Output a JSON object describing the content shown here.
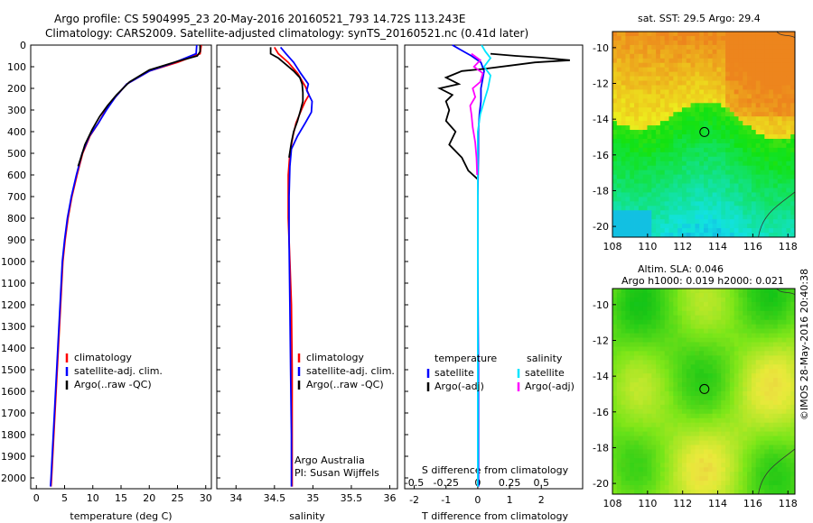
{
  "header": {
    "line1": "Argo profile: CS 5904995_23 20-May-2016 20160521_793 14.72S 113.243E",
    "line2": "Climatology: CARS2009. Satellite-adjusted climatology: synTS_20160521.nc (0.41d later)"
  },
  "colors": {
    "climatology": "#ff0000",
    "satellite": "#0000ff",
    "argo": "#000000",
    "sal_satellite": "#00e5ff",
    "sal_argo": "#ff00ff"
  },
  "chart_data": [
    {
      "type": "line",
      "xlabel": "temperature (deg C)",
      "ylim": [
        0,
        2050
      ],
      "xlim": [
        -1,
        31
      ],
      "xticks": [
        "0",
        "5",
        "10",
        "15",
        "20",
        "25",
        "30"
      ],
      "yticks": [
        "0",
        "100",
        "200",
        "300",
        "400",
        "500",
        "600",
        "700",
        "800",
        "900",
        "1000",
        "1100",
        "1200",
        "1300",
        "1400",
        "1500",
        "1600",
        "1700",
        "1800",
        "1900",
        "2000"
      ],
      "legend": [
        "climatology",
        "satellite-adj. clim.",
        "Argo(..raw -QC)"
      ],
      "series": [
        {
          "name": "climatology",
          "points": [
            [
              29.2,
              0
            ],
            [
              29.0,
              40
            ],
            [
              25,
              80
            ],
            [
              20,
              120
            ],
            [
              16,
              180
            ],
            [
              14,
              240
            ],
            [
              12.3,
              300
            ],
            [
              11,
              360
            ],
            [
              9.5,
              420
            ],
            [
              8.2,
              500
            ],
            [
              7.2,
              600
            ],
            [
              6.3,
              700
            ],
            [
              5.6,
              800
            ],
            [
              5.1,
              900
            ],
            [
              4.7,
              1000
            ],
            [
              4.3,
              1200
            ],
            [
              3.9,
              1400
            ],
            [
              3.5,
              1600
            ],
            [
              3.1,
              1800
            ],
            [
              2.7,
              2000
            ],
            [
              2.6,
              2040
            ]
          ]
        },
        {
          "name": "satellite-adj. clim.",
          "points": [
            [
              28.4,
              0
            ],
            [
              28.3,
              40
            ],
            [
              24.5,
              80
            ],
            [
              20,
              120
            ],
            [
              16,
              180
            ],
            [
              14,
              240
            ],
            [
              12.4,
              300
            ],
            [
              11,
              360
            ],
            [
              9.4,
              420
            ],
            [
              8.1,
              500
            ],
            [
              7.1,
              600
            ],
            [
              6.2,
              700
            ],
            [
              5.5,
              800
            ],
            [
              5.0,
              900
            ],
            [
              4.6,
              1000
            ],
            [
              4.2,
              1200
            ],
            [
              3.8,
              1400
            ],
            [
              3.4,
              1600
            ],
            [
              3.0,
              1800
            ],
            [
              2.6,
              2000
            ],
            [
              2.5,
              2040
            ]
          ]
        },
        {
          "name": "Argo(..raw -QC)",
          "points": [
            [
              29.0,
              0
            ],
            [
              29.0,
              30
            ],
            [
              28.5,
              50
            ],
            [
              25,
              75
            ],
            [
              20,
              115
            ],
            [
              16.5,
              170
            ],
            [
              14.2,
              230
            ],
            [
              12.6,
              280
            ],
            [
              11.2,
              330
            ],
            [
              9.9,
              390
            ],
            [
              8.6,
              460
            ],
            [
              7.9,
              520
            ],
            [
              7.4,
              560
            ]
          ]
        }
      ]
    },
    {
      "type": "line",
      "xlabel": "salinity",
      "ylim": [
        0,
        2050
      ],
      "xlim": [
        33.75,
        36.1
      ],
      "xticks": [
        "34",
        "34.5",
        "35",
        "35.5",
        "36"
      ],
      "legend": [
        "climatology",
        "satellite-adj. clim.",
        "Argo(..raw -QC)"
      ],
      "annotation": [
        "Argo Australia",
        "PI: Susan Wijffels"
      ],
      "series": [
        {
          "name": "climatology",
          "points": [
            [
              34.5,
              10
            ],
            [
              34.55,
              40
            ],
            [
              34.68,
              80
            ],
            [
              34.8,
              130
            ],
            [
              34.9,
              190
            ],
            [
              34.95,
              230
            ],
            [
              34.9,
              260
            ],
            [
              34.85,
              300
            ],
            [
              34.78,
              360
            ],
            [
              34.74,
              420
            ],
            [
              34.7,
              500
            ],
            [
              34.68,
              600
            ],
            [
              34.68,
              800
            ],
            [
              34.7,
              1000
            ],
            [
              34.72,
              1200
            ],
            [
              34.73,
              1500
            ],
            [
              34.73,
              1800
            ],
            [
              34.73,
              2040
            ]
          ]
        },
        {
          "name": "satellite-adj. clim.",
          "points": [
            [
              34.58,
              10
            ],
            [
              34.65,
              40
            ],
            [
              34.75,
              80
            ],
            [
              34.84,
              130
            ],
            [
              34.94,
              180
            ],
            [
              34.92,
              210
            ],
            [
              34.99,
              260
            ],
            [
              34.98,
              310
            ],
            [
              34.9,
              360
            ],
            [
              34.8,
              420
            ],
            [
              34.72,
              480
            ],
            [
              34.7,
              560
            ],
            [
              34.69,
              700
            ],
            [
              34.69,
              900
            ],
            [
              34.7,
              1200
            ],
            [
              34.71,
              1500
            ],
            [
              34.72,
              1800
            ],
            [
              34.72,
              2040
            ]
          ]
        },
        {
          "name": "Argo(..raw -QC)",
          "points": [
            [
              34.45,
              10
            ],
            [
              34.45,
              40
            ],
            [
              34.55,
              60
            ],
            [
              34.65,
              90
            ],
            [
              34.75,
              120
            ],
            [
              34.83,
              150
            ],
            [
              34.86,
              180
            ],
            [
              34.87,
              220
            ],
            [
              34.87,
              260
            ],
            [
              34.84,
              300
            ],
            [
              34.8,
              350
            ],
            [
              34.75,
              400
            ],
            [
              34.72,
              450
            ],
            [
              34.69,
              520
            ]
          ]
        }
      ]
    },
    {
      "type": "line",
      "xlabel": "T difference from climatology",
      "xlabel2": "S difference from climatology",
      "ylim": [
        0,
        2050
      ],
      "xlim": [
        -2.3,
        3.3
      ],
      "xticks": [
        "-2",
        "-1",
        "0",
        "1",
        "2"
      ],
      "xticks2": [
        "-0.5",
        "-0.25",
        "0",
        "0.25",
        "0.5"
      ],
      "legend_t_title": "temperature",
      "legend_s_title": "salinity",
      "legend_t": [
        "satellite",
        "Argo(-adj)"
      ],
      "legend_s": [
        "satellite",
        "Argo(-adj)"
      ],
      "series": [
        {
          "name": "T satellite",
          "points": [
            [
              -0.8,
              0
            ],
            [
              -0.5,
              25
            ],
            [
              -0.2,
              50
            ],
            [
              0.1,
              80
            ],
            [
              0.2,
              120
            ],
            [
              0.15,
              160
            ],
            [
              0.1,
              200
            ],
            [
              0.1,
              260
            ],
            [
              0.05,
              320
            ],
            [
              0.02,
              400
            ],
            [
              0.02,
              500
            ],
            [
              0.0,
              700
            ],
            [
              0.0,
              1000
            ],
            [
              0.02,
              1500
            ],
            [
              0.02,
              2000
            ],
            [
              0.02,
              2040
            ]
          ]
        },
        {
          "name": "T Argo(-adj)",
          "points": [
            [
              0.4,
              40
            ],
            [
              1.2,
              50
            ],
            [
              2.0,
              58
            ],
            [
              2.9,
              70
            ],
            [
              1.8,
              80
            ],
            [
              1.0,
              95
            ],
            [
              0.2,
              110
            ],
            [
              -0.5,
              120
            ],
            [
              -1.0,
              150
            ],
            [
              -0.6,
              180
            ],
            [
              -1.2,
              200
            ],
            [
              -0.8,
              230
            ],
            [
              -1.0,
              260
            ],
            [
              -0.9,
              300
            ],
            [
              -1.0,
              350
            ],
            [
              -0.7,
              400
            ],
            [
              -0.9,
              460
            ],
            [
              -0.5,
              520
            ],
            [
              -0.3,
              580
            ],
            [
              0.0,
              620
            ]
          ]
        },
        {
          "name": "S satellite",
          "points": [
            [
              0.03,
              0
            ],
            [
              0.06,
              30
            ],
            [
              0.1,
              60
            ],
            [
              0.05,
              100
            ],
            [
              0.1,
              140
            ],
            [
              0.08,
              200
            ],
            [
              0.05,
              260
            ],
            [
              0.02,
              320
            ],
            [
              0.0,
              400
            ],
            [
              0.0,
              600
            ],
            [
              0.0,
              900
            ],
            [
              0.0,
              1300
            ],
            [
              0.0,
              1700
            ],
            [
              0.0,
              2040
            ]
          ]
        },
        {
          "name": "S Argo(-adj)",
          "points": [
            [
              -0.05,
              40
            ],
            [
              0.02,
              70
            ],
            [
              -0.03,
              100
            ],
            [
              0.04,
              130
            ],
            [
              0.02,
              170
            ],
            [
              -0.04,
              200
            ],
            [
              -0.02,
              240
            ],
            [
              -0.06,
              280
            ],
            [
              -0.05,
              320
            ],
            [
              -0.04,
              380
            ],
            [
              -0.02,
              450
            ],
            [
              -0.01,
              520
            ],
            [
              -0.005,
              600
            ]
          ]
        }
      ]
    },
    {
      "type": "heatmap",
      "title": "sat. SST: 29.5 Argo: 29.4",
      "xlim": [
        108,
        118.4
      ],
      "ylim": [
        -20.6,
        -9.1
      ],
      "xticks": [
        "108",
        "110",
        "112",
        "114",
        "116",
        "118"
      ],
      "yticks": [
        "-10",
        "-12",
        "-14",
        "-16",
        "-18",
        "-20"
      ],
      "marker": {
        "lon": 113.24,
        "lat": -14.72
      }
    },
    {
      "type": "heatmap",
      "title": "Altim. SLA: 0.046",
      "subtitle": "Argo h1000: 0.019 h2000: 0.021",
      "xlim": [
        108,
        118.4
      ],
      "ylim": [
        -20.6,
        -9.1
      ],
      "xticks": [
        "108",
        "110",
        "112",
        "114",
        "116",
        "118"
      ],
      "yticks": [
        "-10",
        "-12",
        "-14",
        "-16",
        "-18",
        "-20"
      ],
      "marker": {
        "lon": 113.24,
        "lat": -14.72
      }
    }
  ],
  "footer": {
    "credit": "©IMOS 28-May-2016 20:40:38"
  }
}
